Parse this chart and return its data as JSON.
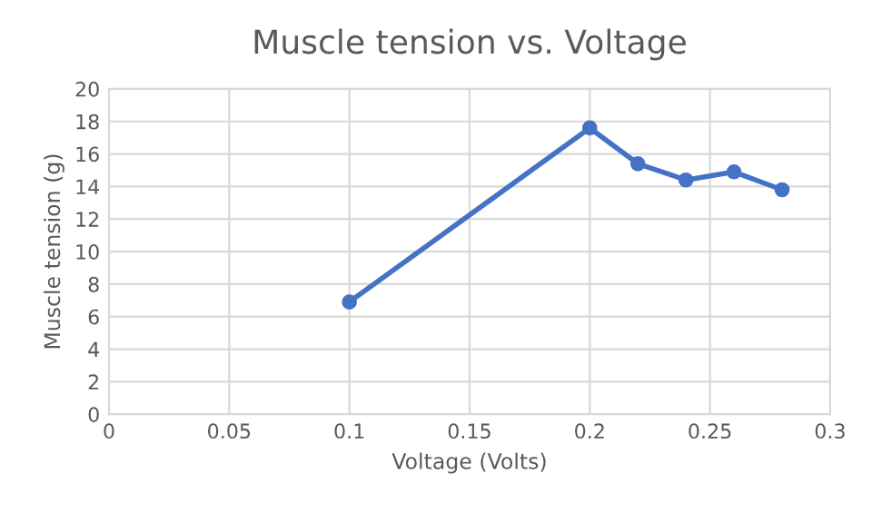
{
  "chart_data": {
    "type": "line",
    "title": "Muscle tension vs. Voltage",
    "xlabel": "Voltage (Volts)",
    "ylabel": "Muscle tension (g)",
    "x": [
      0.1,
      0.2,
      0.22,
      0.24,
      0.26,
      0.28
    ],
    "series": [
      {
        "color": "#4472c4",
        "values": [
          6.9,
          17.6,
          15.4,
          14.4,
          14.9,
          13.8
        ]
      }
    ],
    "xlim": [
      0,
      0.3
    ],
    "xticks": [
      0,
      0.05,
      0.1,
      0.15,
      0.2,
      0.25,
      0.3
    ],
    "ylim": [
      0,
      20
    ],
    "yticks": [
      0,
      2,
      4,
      6,
      8,
      10,
      12,
      14,
      16,
      18,
      20
    ],
    "grid": true,
    "marker": "circle",
    "line_style": "solid",
    "legend": false
  }
}
